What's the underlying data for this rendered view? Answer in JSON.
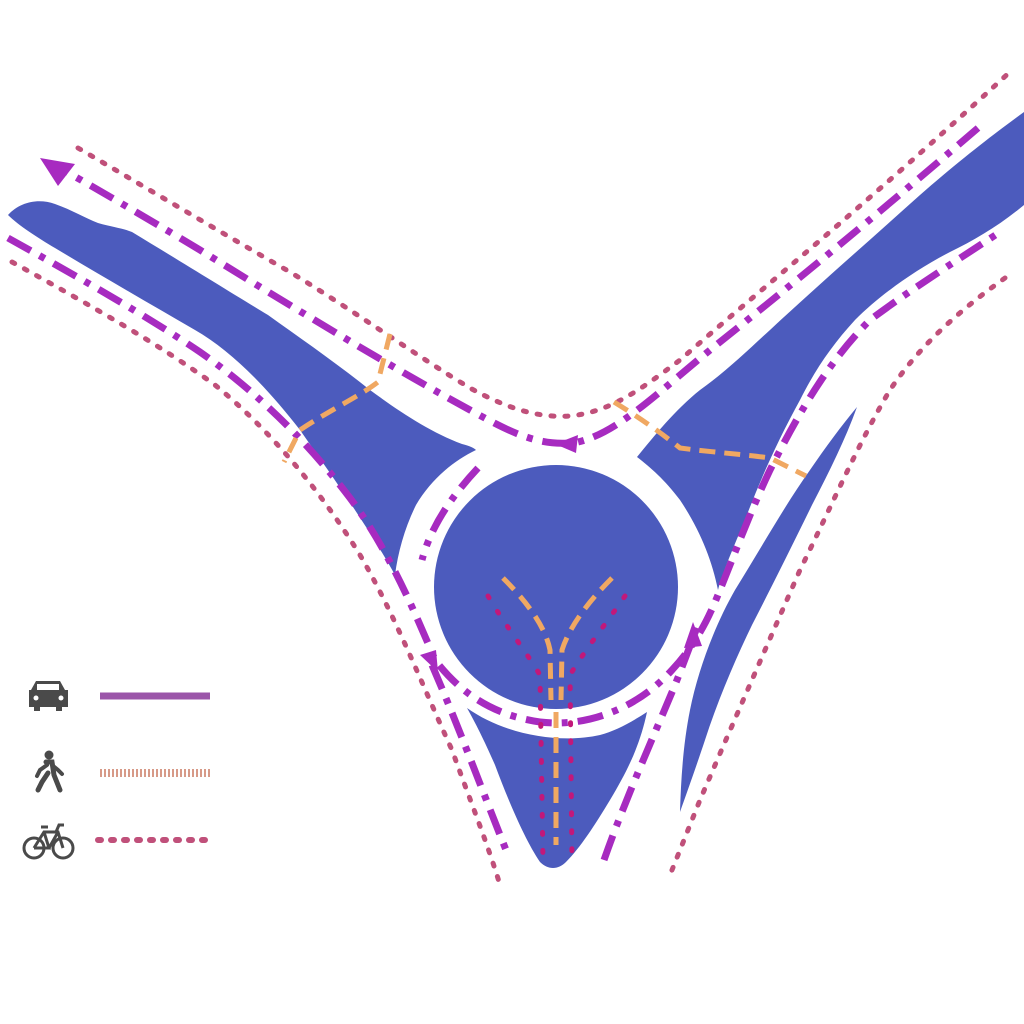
{
  "colors": {
    "background": "#ffffff",
    "island": "#4c5bbd",
    "car_route": "#a72bc0",
    "pedestrian_route": "#f0a862",
    "bike_route_outer": "#c0507a",
    "bike_route_inner": "#c2187a",
    "legend_icon": "#4a4a4a",
    "legend_car_line": "#9b55a9",
    "legend_pedestrian_line": "#d79a88",
    "legend_bike_line": "#c0507a"
  },
  "legend": {
    "items": [
      {
        "mode": "car",
        "icon": "car-icon"
      },
      {
        "mode": "pedestrian",
        "icon": "pedestrian-icon"
      },
      {
        "mode": "bicycle",
        "icon": "bicycle-icon"
      }
    ]
  }
}
